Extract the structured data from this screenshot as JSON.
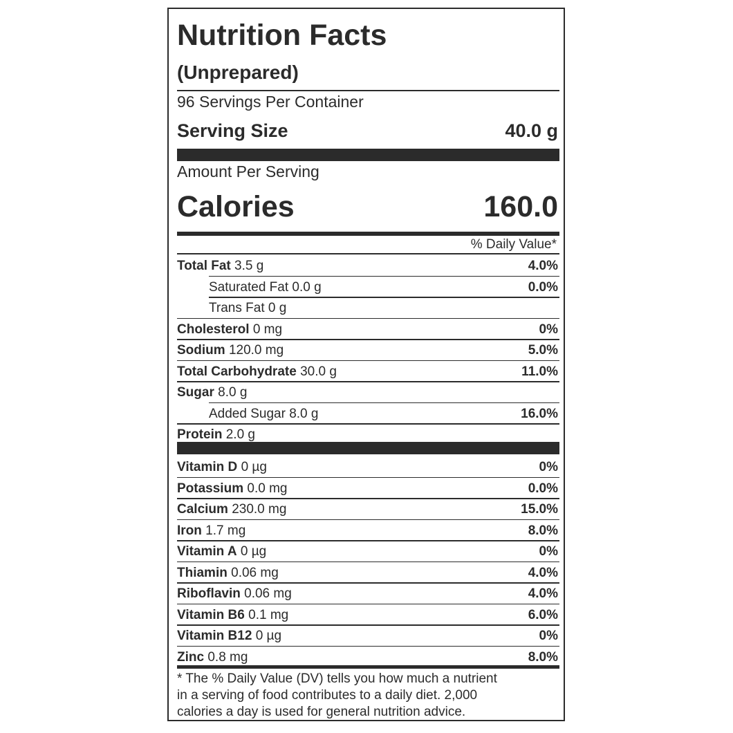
{
  "label": {
    "title": "Nutrition Facts",
    "subtitle": "(Unprepared)",
    "servings": "96 Servings Per Container",
    "serving_size_label": "Serving Size",
    "serving_size_value": "40.0 g",
    "amount_per_serving": "Amount Per Serving",
    "calories_label": "Calories",
    "calories_value": "160.0",
    "dv_header": "% Daily Value*",
    "nutrients": [
      {
        "name": "Total Fat",
        "amount": "3.5 g",
        "dv": "4.0%"
      },
      {
        "name": "Saturated Fat",
        "amount": "0.0 g",
        "dv": "0.0%"
      },
      {
        "name": "Trans Fat",
        "amount": "0 g",
        "dv": ""
      },
      {
        "name": "Cholesterol",
        "amount": "0 mg",
        "dv": "0%"
      },
      {
        "name": "Sodium",
        "amount": "120.0 mg",
        "dv": "5.0%"
      },
      {
        "name": "Total Carbohydrate",
        "amount": "30.0 g",
        "dv": "11.0%"
      },
      {
        "name": "Sugar",
        "amount": "8.0 g",
        "dv": ""
      },
      {
        "name": "Added Sugar",
        "amount": "8.0 g",
        "dv": "16.0%"
      },
      {
        "name": "Protein",
        "amount": "2.0 g",
        "dv": ""
      }
    ],
    "vitamins": [
      {
        "name": "Vitamin D",
        "amount": "0 µg",
        "dv": "0%"
      },
      {
        "name": "Potassium",
        "amount": "0.0 mg",
        "dv": "0.0%"
      },
      {
        "name": "Calcium",
        "amount": "230.0 mg",
        "dv": "15.0%"
      },
      {
        "name": "Iron",
        "amount": "1.7 mg",
        "dv": "8.0%"
      },
      {
        "name": "Vitamin A",
        "amount": "0 µg",
        "dv": "0%"
      },
      {
        "name": "Thiamin",
        "amount": "0.06 mg",
        "dv": "4.0%"
      },
      {
        "name": "Riboflavin",
        "amount": "0.06 mg",
        "dv": "4.0%"
      },
      {
        "name": "Vitamin B6",
        "amount": "0.1 mg",
        "dv": "6.0%"
      },
      {
        "name": "Vitamin B12",
        "amount": "0 µg",
        "dv": "0%"
      },
      {
        "name": "Zinc",
        "amount": "0.8 mg",
        "dv": "8.0%"
      }
    ],
    "footnote_1": "* The % Daily Value (DV) tells you how much a nutrient",
    "footnote_2": "in a serving of food contributes to a daily diet. 2,000",
    "footnote_3": "calories a day is used for general nutrition advice."
  }
}
